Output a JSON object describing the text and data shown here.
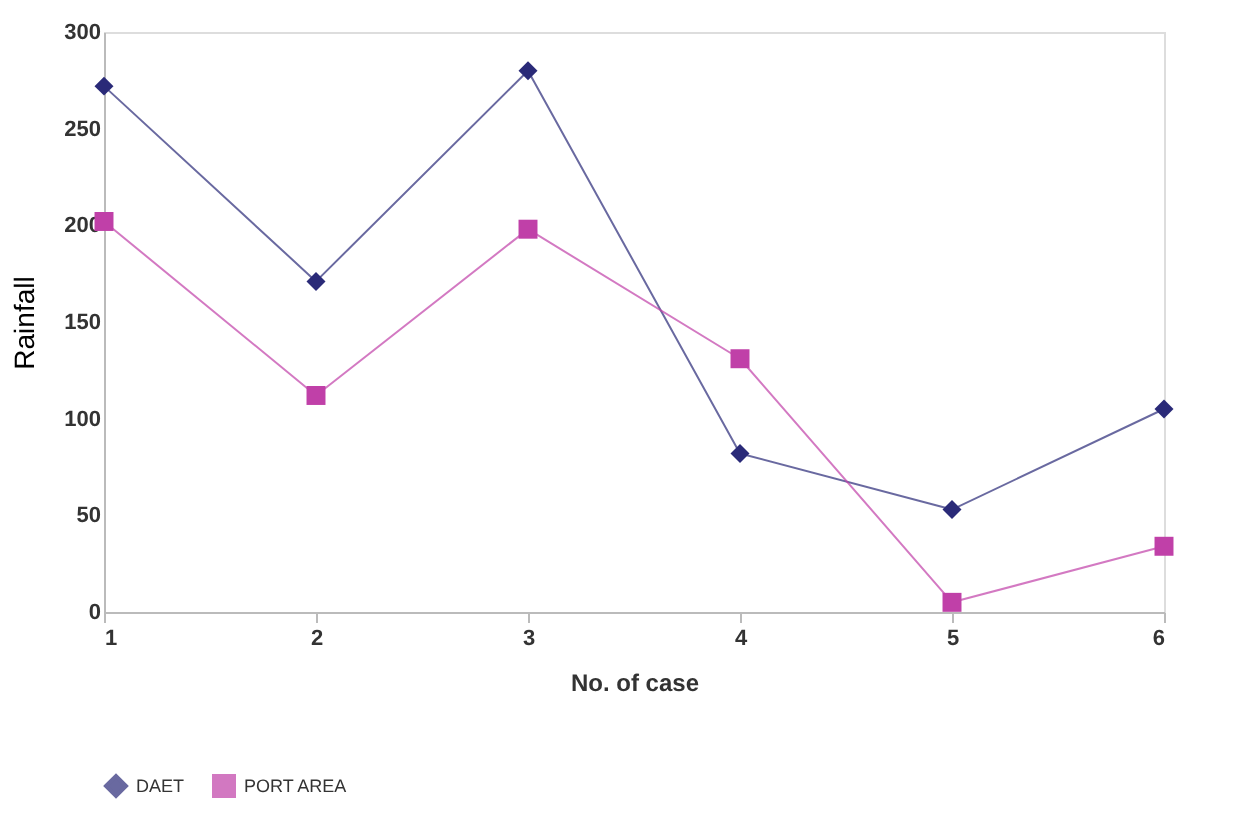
{
  "chart_data": {
    "type": "line",
    "xlabel": "No. of case",
    "ylabel": "Rainfall",
    "x": [
      1,
      2,
      3,
      4,
      5,
      6
    ],
    "series": [
      {
        "name": "DAET",
        "color": "#2a2a78",
        "marker": "diamond",
        "values": [
          272,
          171,
          280,
          82,
          53,
          105
        ]
      },
      {
        "name": "PORT AREA",
        "color": "#c040a8",
        "marker": "square",
        "values": [
          202,
          112,
          198,
          131,
          5,
          34
        ]
      }
    ],
    "xlim": [
      1,
      6
    ],
    "xticks": [
      1,
      2,
      3,
      4,
      5,
      6
    ],
    "ylim": [
      0,
      300
    ],
    "yticks": [
      0,
      50,
      100,
      150,
      200,
      250,
      300
    ],
    "grid": false,
    "legend": "bottom",
    "line_style": "solid"
  }
}
